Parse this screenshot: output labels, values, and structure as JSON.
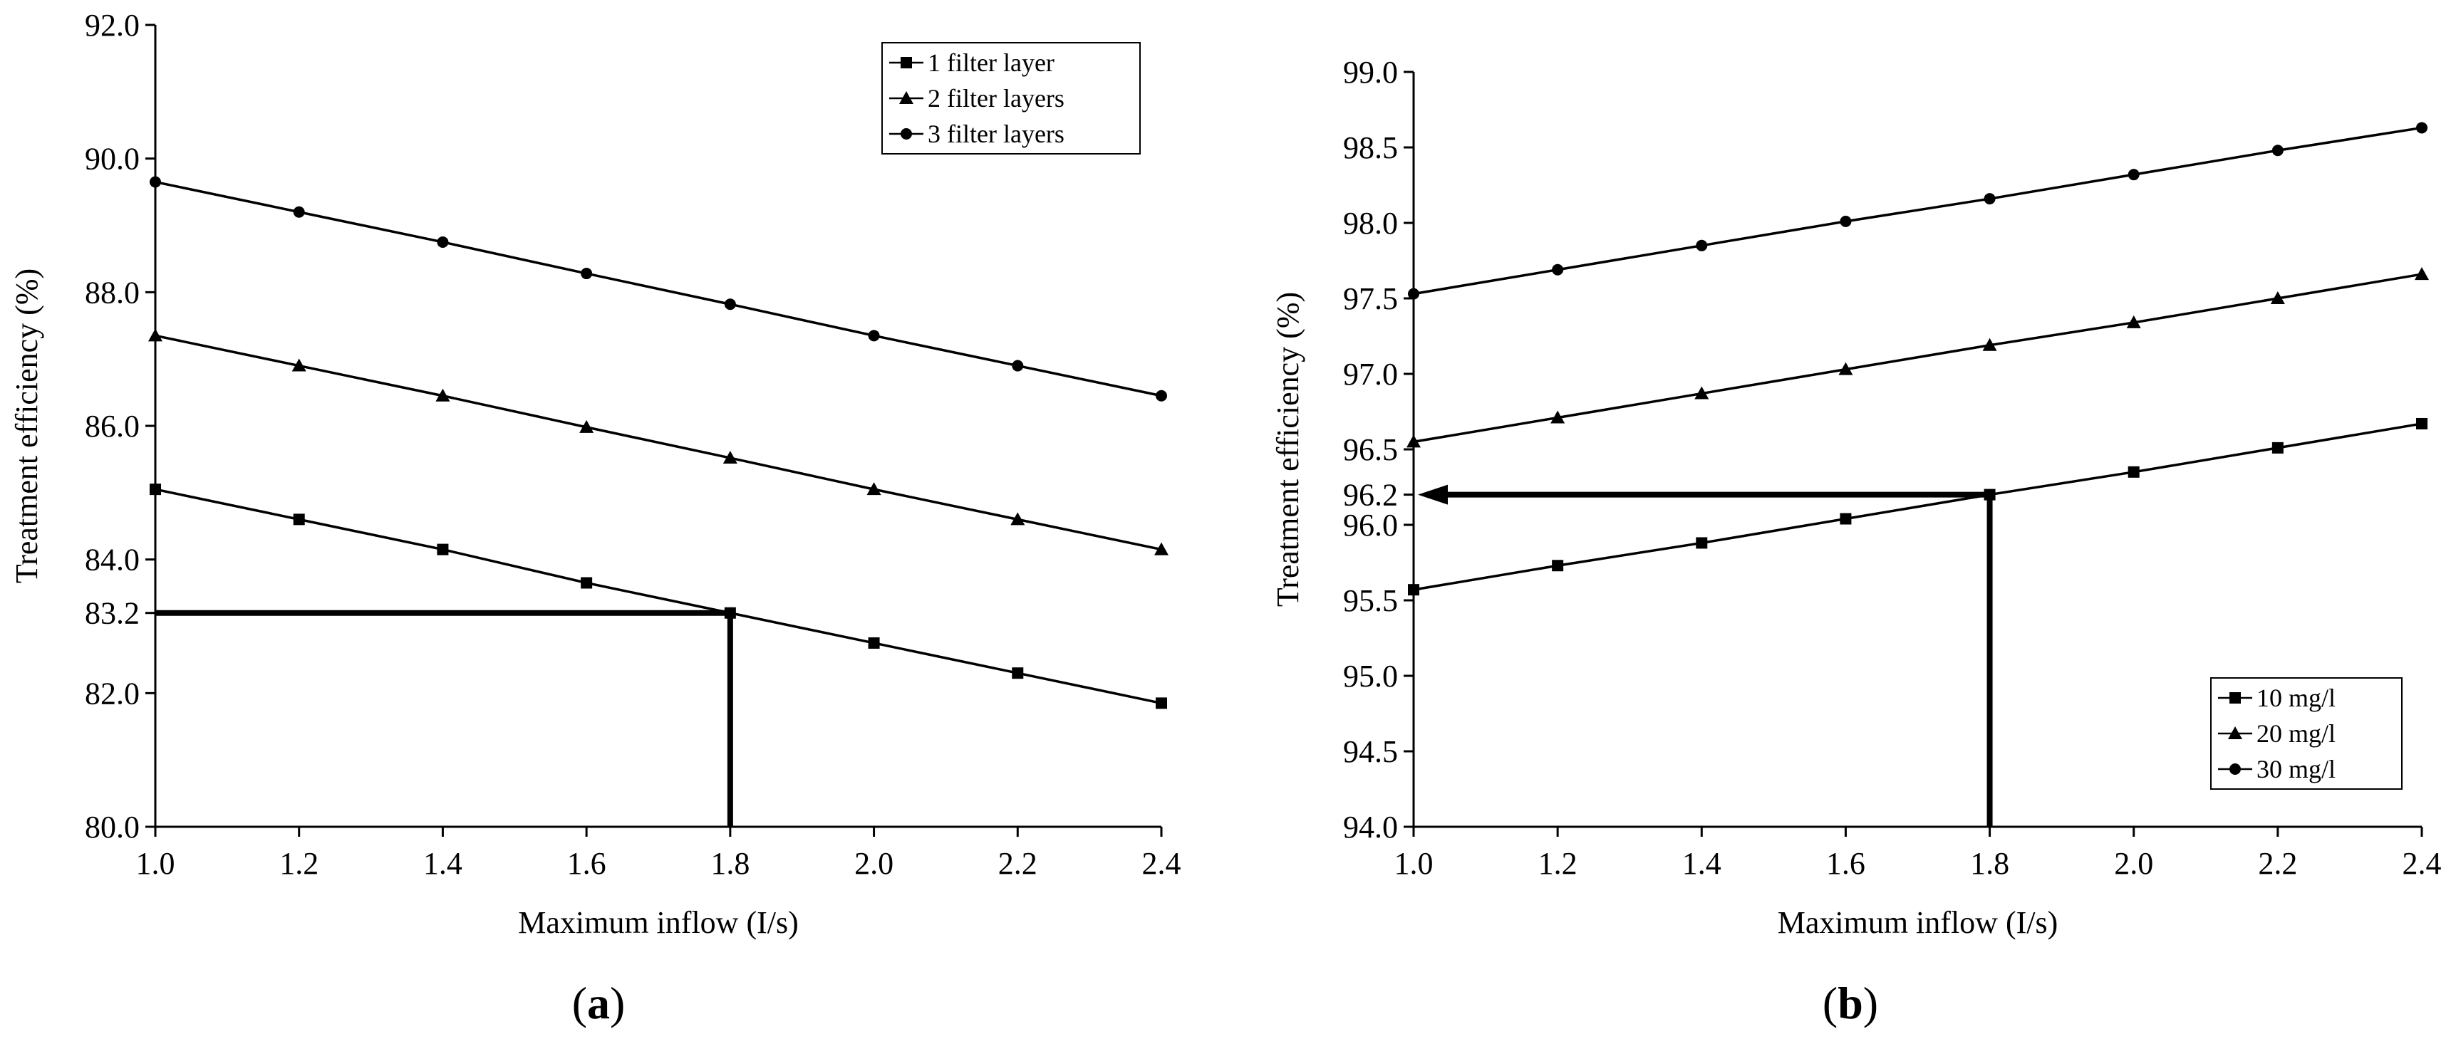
{
  "chart_data": [
    {
      "panel_label": [
        "(",
        "a",
        ")"
      ],
      "type": "line",
      "xlabel": "Maximum inflow (I/s)",
      "ylabel": "Treatment efficiency (%)",
      "xlim": [
        1.0,
        2.4
      ],
      "ylim": [
        80.0,
        92.0
      ],
      "x": [
        1.0,
        1.2,
        1.4,
        1.6,
        1.8,
        2.0,
        2.2,
        2.4
      ],
      "x_tick_labels": [
        "1.0",
        "1.2",
        "1.4",
        "1.6",
        "1.8",
        "2.0",
        "2.2",
        "2.4"
      ],
      "y_ticks": [
        80.0,
        82.0,
        83.2,
        84.0,
        86.0,
        88.0,
        90.0,
        92.0
      ],
      "y_tick_labels": [
        "80.0",
        "82.0",
        "83.2",
        "84.0",
        "86.0",
        "88.0",
        "90.0",
        "92.0"
      ],
      "legend_position": "top-right",
      "grid": false,
      "series": [
        {
          "name": "1 filter layer",
          "marker": "square",
          "values": [
            85.05,
            84.6,
            84.15,
            83.65,
            83.2,
            82.75,
            82.3,
            81.85
          ]
        },
        {
          "name": "2 filter layers",
          "marker": "triangle",
          "values": [
            87.35,
            86.9,
            86.45,
            85.98,
            85.52,
            85.05,
            84.6,
            84.15
          ]
        },
        {
          "name": "3 filter layers",
          "marker": "circle",
          "values": [
            89.65,
            89.2,
            88.75,
            88.28,
            87.82,
            87.35,
            86.9,
            86.45
          ]
        }
      ],
      "annotation": {
        "type": "reference-lines",
        "x": 1.8,
        "y": 83.2,
        "arrow": false
      }
    },
    {
      "panel_label": [
        "(",
        "b",
        ")"
      ],
      "type": "line",
      "xlabel": "Maximum inflow (I/s)",
      "ylabel": "Treatment efficiency (%)",
      "xlim": [
        1.0,
        2.4
      ],
      "ylim": [
        94.0,
        99.0
      ],
      "x": [
        1.0,
        1.2,
        1.4,
        1.6,
        1.8,
        2.0,
        2.2,
        2.4
      ],
      "x_tick_labels": [
        "1.0",
        "1.2",
        "1.4",
        "1.6",
        "1.8",
        "2.0",
        "2.2",
        "2.4"
      ],
      "y_ticks": [
        94.0,
        94.5,
        95.0,
        95.5,
        96.0,
        96.2,
        96.5,
        97.0,
        97.5,
        98.0,
        98.5,
        99.0
      ],
      "y_tick_labels": [
        "94.0",
        "94.5",
        "95.0",
        "95.5",
        "96.0",
        "96.2",
        "96.5",
        "97.0",
        "97.5",
        "98.0",
        "98.5",
        "99.0"
      ],
      "legend_position": "bottom-right",
      "grid": false,
      "series": [
        {
          "name": "10 mg/l",
          "marker": "square",
          "values": [
            95.57,
            95.73,
            95.88,
            96.04,
            96.2,
            96.35,
            96.51,
            96.67
          ]
        },
        {
          "name": "20 mg/l",
          "marker": "triangle",
          "values": [
            96.55,
            96.71,
            96.87,
            97.03,
            97.19,
            97.34,
            97.5,
            97.66
          ]
        },
        {
          "name": "30 mg/l",
          "marker": "circle",
          "values": [
            97.53,
            97.69,
            97.85,
            98.01,
            98.16,
            98.32,
            98.48,
            98.63
          ]
        }
      ],
      "annotation": {
        "type": "reference-lines",
        "x": 1.8,
        "y": 96.2,
        "arrow": true
      }
    }
  ]
}
